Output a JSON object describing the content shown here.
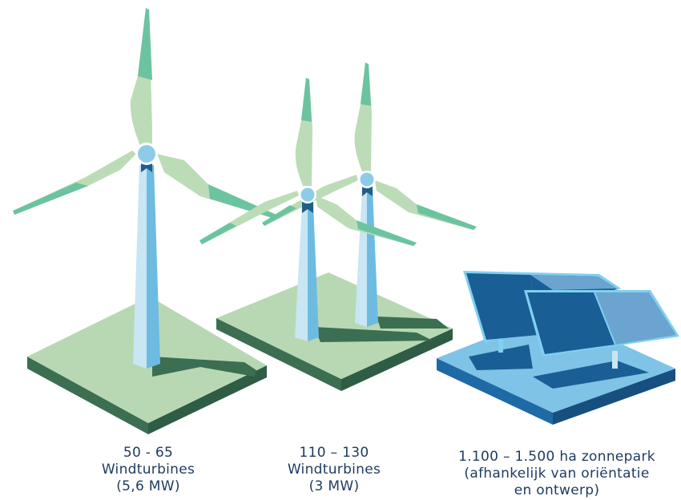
{
  "colors": {
    "ground_light": "#b8d8b4",
    "ground_dark": "#3c6e52",
    "blade_light": "#bcdcb8",
    "blade_tip": "#6cc39f",
    "tower_light": "#c9e6f4",
    "tower_mid": "#6dbbe0",
    "hub": "#8ccce8",
    "nacelle": "#1e5f8a",
    "solar_base_top": "#7fc3e6",
    "solar_base_side": "#1e6aa6",
    "solar_panel_dark": "#1a5e96",
    "solar_panel_light": "#6aa4cf",
    "solar_frame": "#7fd0f2",
    "text": "#1e3a5f"
  },
  "options": [
    {
      "id": "option-1",
      "icon": "large-wind-turbine-icon",
      "caption_lines": [
        "50 - 65",
        "Windturbines",
        "(5,6 MW)"
      ]
    },
    {
      "id": "option-2",
      "icon": "two-wind-turbines-icon",
      "caption_lines": [
        "110 – 130",
        "Windturbines",
        "(3 MW)"
      ]
    },
    {
      "id": "option-3",
      "icon": "solar-park-icon",
      "caption_lines": [
        "1.100 – 1.500 ha zonnepark",
        "(afhankelijk van oriëntatie",
        "en ontwerp)"
      ]
    }
  ]
}
